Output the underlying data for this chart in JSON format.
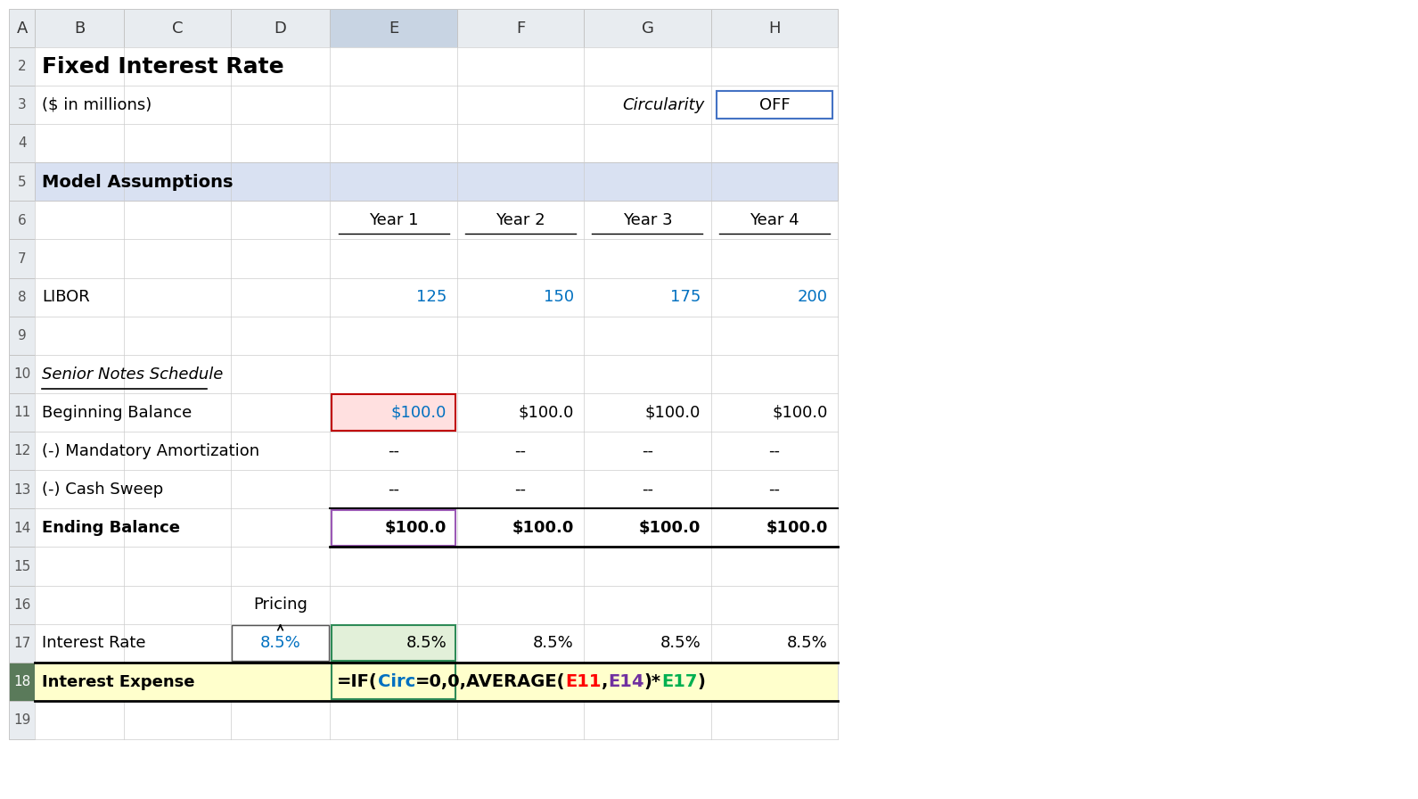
{
  "title": "Fixed Interest Rate",
  "subtitle": "($ in millions)",
  "circularity_label": "Circularity",
  "circularity_value": "OFF",
  "section_header": "Model Assumptions",
  "years": [
    "Year 1",
    "Year 2",
    "Year 3",
    "Year 4"
  ],
  "libor_label": "LIBOR",
  "libor_values": [
    "125",
    "150",
    "175",
    "200"
  ],
  "senior_notes_label": "Senior Notes Schedule",
  "rows": [
    {
      "label": "Beginning Balance",
      "bold": false,
      "values": [
        "$100.0",
        "$100.0",
        "$100.0",
        "$100.0"
      ]
    },
    {
      "label": "(-) Mandatory Amortization",
      "bold": false,
      "values": [
        "--",
        "--",
        "--",
        "--"
      ]
    },
    {
      "label": "(-) Cash Sweep",
      "bold": false,
      "values": [
        "--",
        "--",
        "--",
        "--"
      ]
    },
    {
      "label": "Ending Balance",
      "bold": true,
      "values": [
        "$100.0",
        "$100.0",
        "$100.0",
        "$100.0"
      ]
    }
  ],
  "pricing_label": "Pricing",
  "interest_rate_label": "Interest Rate",
  "interest_rate_pricing": "8.5%",
  "interest_rate_values": [
    "8.5%",
    "8.5%",
    "8.5%",
    "8.5%"
  ],
  "interest_expense_label": "Interest Expense",
  "formula_parts": [
    {
      "text": "=IF(",
      "color": "#000000"
    },
    {
      "text": "Circ",
      "color": "#0070C0"
    },
    {
      "text": "=0,0,AVERAGE(",
      "color": "#000000"
    },
    {
      "text": "E11",
      "color": "#FF0000"
    },
    {
      "text": ",",
      "color": "#000000"
    },
    {
      "text": "E14",
      "color": "#7030A0"
    },
    {
      "text": ")*",
      "color": "#000000"
    },
    {
      "text": "E17",
      "color": "#00B050"
    },
    {
      "text": ")",
      "color": "#000000"
    }
  ],
  "section_bg": "#D9E1F2",
  "libor_color": "#0070C0",
  "highlight_pink_bg": "#FFE0E0",
  "highlight_pink_border": "#C00000",
  "highlight_purple_border": "#9B59B6",
  "highlight_green_bg": "#E2F0D9",
  "highlight_green_border": "#2E8B57",
  "interest_expense_bg": "#FFFFCC",
  "off_box_border": "#4472C4",
  "background_color": "#FFFFFF"
}
